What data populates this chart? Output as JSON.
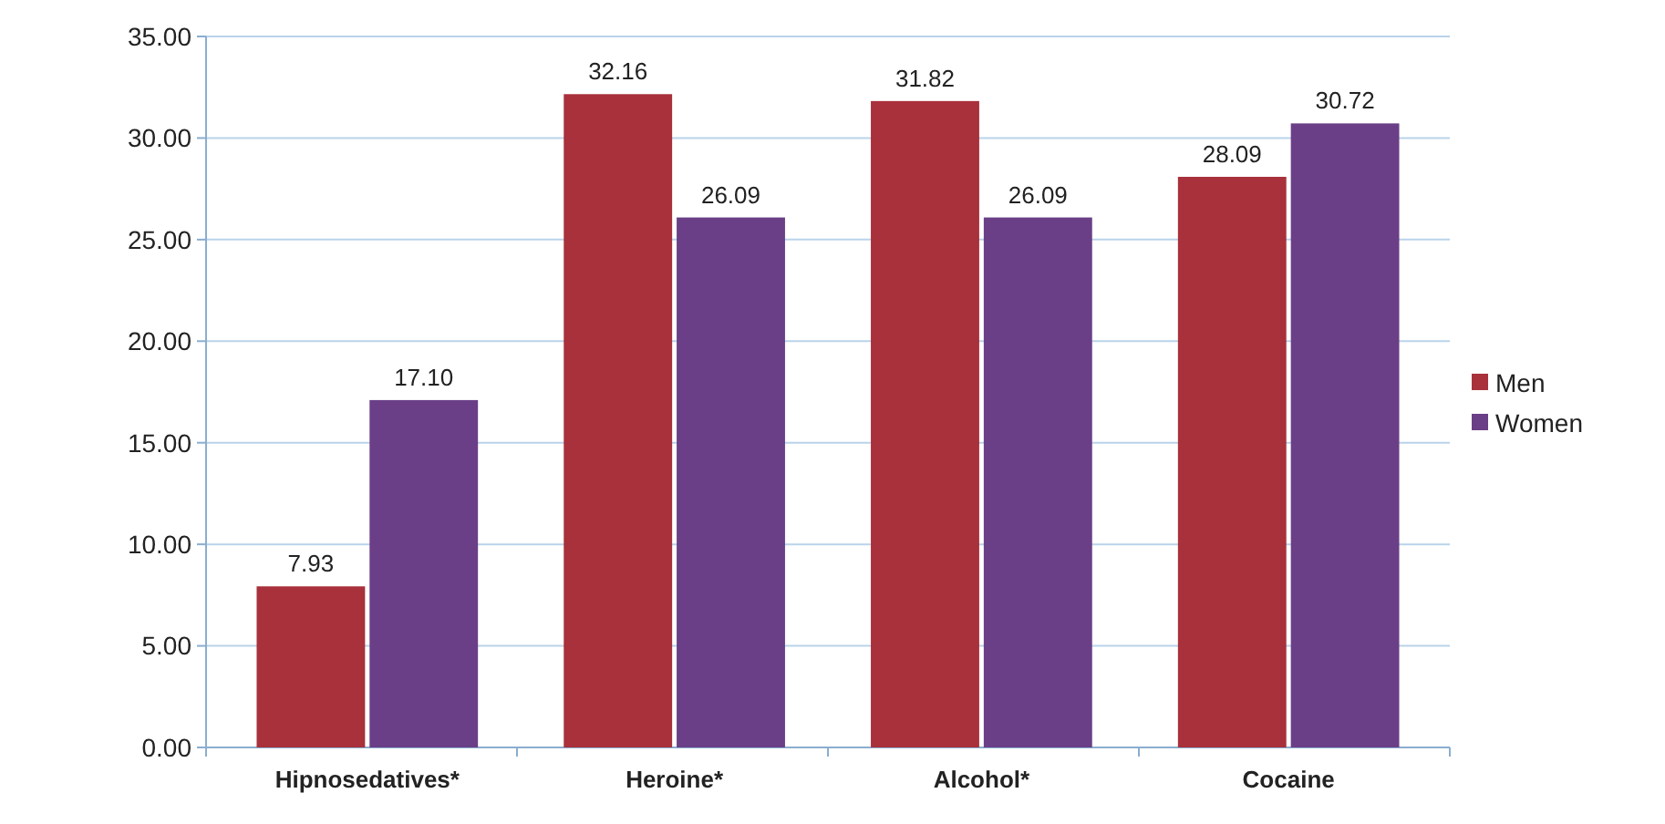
{
  "chart_data": {
    "type": "bar",
    "categories": [
      "Hipnosedatives*",
      "Heroine*",
      "Alcohol*",
      "Cocaine"
    ],
    "series": [
      {
        "name": "Men",
        "color": "#a8313b",
        "values": [
          7.93,
          32.16,
          31.82,
          28.09
        ],
        "value_labels": [
          "7.93",
          "32.16",
          "31.82",
          "28.09"
        ]
      },
      {
        "name": "Women",
        "color": "#6a3f87",
        "values": [
          17.1,
          26.09,
          26.09,
          30.72
        ],
        "value_labels": [
          "17.10",
          "26.09",
          "26.09",
          "30.72"
        ]
      }
    ],
    "ylim": [
      0,
      35
    ],
    "yticks": [
      {
        "value": 0,
        "label": "0.00"
      },
      {
        "value": 5,
        "label": "5.00"
      },
      {
        "value": 10,
        "label": "10.00"
      },
      {
        "value": 15,
        "label": "15.00"
      },
      {
        "value": 20,
        "label": "20.00"
      },
      {
        "value": 25,
        "label": "25.00"
      },
      {
        "value": 30,
        "label": "30.00"
      },
      {
        "value": 35,
        "label": "35.00"
      }
    ],
    "grid": "y",
    "legend": "right"
  }
}
